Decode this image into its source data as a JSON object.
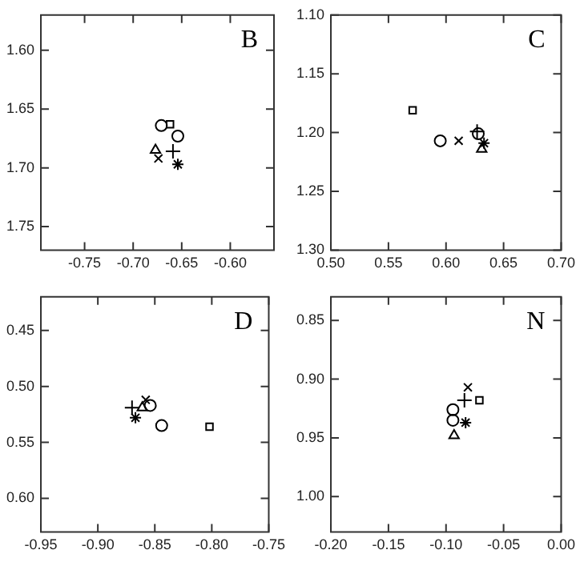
{
  "chart_data": [
    {
      "type": "scatter",
      "title": "B",
      "legend": false,
      "grid": false,
      "xlim": [
        -0.795,
        -0.555
      ],
      "xticks": [
        {
          "value": -0.75,
          "label": "-0.75"
        },
        {
          "value": -0.7,
          "label": "-0.70"
        },
        {
          "value": -0.65,
          "label": "-0.65"
        },
        {
          "value": -0.6,
          "label": "-0.60"
        }
      ],
      "ylim": [
        1.77,
        1.57
      ],
      "yticks": [
        {
          "value": 1.6,
          "label": "1.60"
        },
        {
          "value": 1.65,
          "label": "1.65"
        },
        {
          "value": 1.7,
          "label": "1.70"
        },
        {
          "value": 1.75,
          "label": "1.75"
        }
      ],
      "series": [
        {
          "marker": "circle",
          "color": "#000000",
          "x": [
            -0.671
          ],
          "values": [
            1.664
          ]
        },
        {
          "marker": "circle",
          "color": "#000000",
          "x": [
            -0.654
          ],
          "values": [
            1.673
          ]
        },
        {
          "marker": "square",
          "color": "#000000",
          "x": [
            -0.662
          ],
          "values": [
            1.663
          ]
        },
        {
          "marker": "triangle",
          "color": "#000000",
          "x": [
            -0.677
          ],
          "values": [
            1.685
          ]
        },
        {
          "marker": "x",
          "color": "#000000",
          "x": [
            -0.674
          ],
          "values": [
            1.692
          ]
        },
        {
          "marker": "plus",
          "color": "#000000",
          "x": [
            -0.659
          ],
          "values": [
            1.686
          ]
        },
        {
          "marker": "cross",
          "color": "#000000",
          "x": [
            -0.654
          ],
          "values": [
            1.697
          ]
        }
      ]
    },
    {
      "type": "scatter",
      "title": "C",
      "legend": false,
      "grid": false,
      "xlim": [
        0.5,
        0.7
      ],
      "xticks": [
        {
          "value": 0.5,
          "label": "0.50"
        },
        {
          "value": 0.55,
          "label": "0.55"
        },
        {
          "value": 0.6,
          "label": "0.60"
        },
        {
          "value": 0.65,
          "label": "0.65"
        },
        {
          "value": 0.7,
          "label": "0.70"
        }
      ],
      "ylim": [
        1.3,
        1.1
      ],
      "yticks": [
        {
          "value": 1.1,
          "label": "1.10"
        },
        {
          "value": 1.15,
          "label": "1.15"
        },
        {
          "value": 1.2,
          "label": "1.20"
        },
        {
          "value": 1.25,
          "label": "1.25"
        },
        {
          "value": 1.3,
          "label": "1.30"
        }
      ],
      "series": [
        {
          "marker": "circle",
          "color": "#000000",
          "x": [
            0.595
          ],
          "values": [
            1.207
          ]
        },
        {
          "marker": "circle",
          "color": "#000000",
          "x": [
            0.628
          ],
          "values": [
            1.201
          ]
        },
        {
          "marker": "square",
          "color": "#000000",
          "x": [
            0.571
          ],
          "values": [
            1.181
          ]
        },
        {
          "marker": "triangle",
          "color": "#000000",
          "x": [
            0.631
          ],
          "values": [
            1.214
          ]
        },
        {
          "marker": "x",
          "color": "#000000",
          "x": [
            0.611
          ],
          "values": [
            1.207
          ]
        },
        {
          "marker": "plus",
          "color": "#000000",
          "x": [
            0.627
          ],
          "values": [
            1.199
          ]
        },
        {
          "marker": "cross",
          "color": "#000000",
          "x": [
            0.633
          ],
          "values": [
            1.209
          ]
        }
      ]
    },
    {
      "type": "scatter",
      "title": "D",
      "legend": false,
      "grid": false,
      "xlim": [
        -0.95,
        -0.75
      ],
      "xticks": [
        {
          "value": -0.95,
          "label": "-0.95"
        },
        {
          "value": -0.9,
          "label": "-0.90"
        },
        {
          "value": -0.85,
          "label": "-0.85"
        },
        {
          "value": -0.8,
          "label": "-0.80"
        },
        {
          "value": -0.75,
          "label": "-0.75"
        }
      ],
      "ylim": [
        0.63,
        0.42
      ],
      "yticks": [
        {
          "value": 0.45,
          "label": "0.45"
        },
        {
          "value": 0.5,
          "label": "0.50"
        },
        {
          "value": 0.55,
          "label": "0.55"
        },
        {
          "value": 0.6,
          "label": "0.60"
        }
      ],
      "series": [
        {
          "marker": "circle",
          "color": "#000000",
          "x": [
            -0.844
          ],
          "values": [
            0.535
          ]
        },
        {
          "marker": "circle",
          "color": "#000000",
          "x": [
            -0.854
          ],
          "values": [
            0.517
          ]
        },
        {
          "marker": "square",
          "color": "#000000",
          "x": [
            -0.802
          ],
          "values": [
            0.536
          ]
        },
        {
          "marker": "triangle",
          "color": "#000000",
          "x": [
            -0.861
          ],
          "values": [
            0.519
          ]
        },
        {
          "marker": "x",
          "color": "#000000",
          "x": [
            -0.858
          ],
          "values": [
            0.512
          ]
        },
        {
          "marker": "plus",
          "color": "#000000",
          "x": [
            -0.87
          ],
          "values": [
            0.519
          ]
        },
        {
          "marker": "cross",
          "color": "#000000",
          "x": [
            -0.867
          ],
          "values": [
            0.528
          ]
        }
      ]
    },
    {
      "type": "scatter",
      "title": "N",
      "legend": false,
      "grid": false,
      "xlim": [
        -0.2,
        0.0
      ],
      "xticks": [
        {
          "value": -0.2,
          "label": "-0.20"
        },
        {
          "value": -0.15,
          "label": "-0.15"
        },
        {
          "value": -0.1,
          "label": "-0.10"
        },
        {
          "value": -0.05,
          "label": "-0.05"
        },
        {
          "value": 0.0,
          "label": "0.00"
        }
      ],
      "ylim": [
        1.03,
        0.83
      ],
      "yticks": [
        {
          "value": 0.85,
          "label": "0.85"
        },
        {
          "value": 0.9,
          "label": "0.90"
        },
        {
          "value": 0.95,
          "label": "0.95"
        },
        {
          "value": 1.0,
          "label": "1.00"
        }
      ],
      "series": [
        {
          "marker": "circle",
          "color": "#000000",
          "x": [
            -0.094
          ],
          "values": [
            0.926
          ]
        },
        {
          "marker": "circle",
          "color": "#000000",
          "x": [
            -0.094
          ],
          "values": [
            0.935
          ]
        },
        {
          "marker": "square",
          "color": "#000000",
          "x": [
            -0.071
          ],
          "values": [
            0.918
          ]
        },
        {
          "marker": "triangle",
          "color": "#000000",
          "x": [
            -0.093
          ],
          "values": [
            0.948
          ]
        },
        {
          "marker": "x",
          "color": "#000000",
          "x": [
            -0.081
          ],
          "values": [
            0.907
          ]
        },
        {
          "marker": "plus",
          "color": "#000000",
          "x": [
            -0.084
          ],
          "values": [
            0.918
          ]
        },
        {
          "marker": "cross",
          "color": "#000000",
          "x": [
            -0.083
          ],
          "values": [
            0.937
          ]
        }
      ]
    }
  ]
}
